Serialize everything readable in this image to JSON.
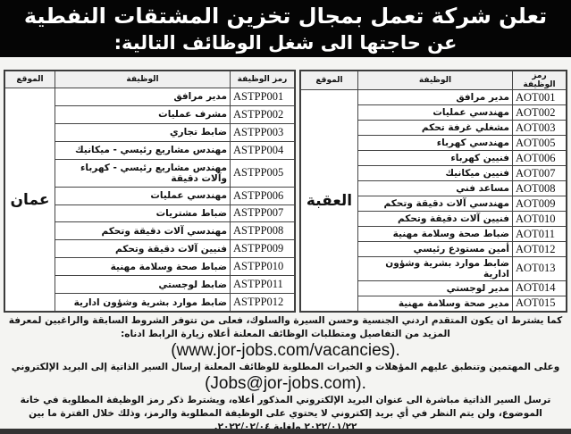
{
  "header": {
    "line1": "تعلن شركة تعمل بمجال تخزين المشتقات النفطية",
    "line2": "عن حاجتها الى شغل الوظائف التالية:"
  },
  "columns": {
    "code": "رمز الوظيفة",
    "title": "الوظيفة",
    "location": "الموقع"
  },
  "aqaba": {
    "location": "العقبة",
    "rows": [
      {
        "code": "AOT001",
        "title": "مدير مرافق"
      },
      {
        "code": "AOT002",
        "title": "مهندسي عمليات"
      },
      {
        "code": "AOT003",
        "title": "مشغلي غرفة تحكم"
      },
      {
        "code": "AOT005",
        "title": "مهندسي كهرباء"
      },
      {
        "code": "AOT006",
        "title": "فنيين كهرباء"
      },
      {
        "code": "AOT007",
        "title": "فنيين ميكانيك"
      },
      {
        "code": "AOT008",
        "title": "مساعد فني"
      },
      {
        "code": "AOT009",
        "title": "مهندسي آلات دقيقة وتحكم"
      },
      {
        "code": "AOT010",
        "title": "فنيين آلات دقيقة وتحكم"
      },
      {
        "code": "AOT011",
        "title": "ضباط صحة وسلامة مهنية"
      },
      {
        "code": "AOT012",
        "title": "أمين مستودع رئيسي"
      },
      {
        "code": "AOT013",
        "title": "ضابط موارد بشرية وشؤون ادارية"
      },
      {
        "code": "AOT014",
        "title": "مدير لوجستي"
      },
      {
        "code": "AOT015",
        "title": "مدير صحة وسلامة مهنية"
      }
    ]
  },
  "amman": {
    "location": "عمان",
    "rows": [
      {
        "code": "ASTPP001",
        "title": "مدير مرافق"
      },
      {
        "code": "ASTPP002",
        "title": "مشرف عمليات"
      },
      {
        "code": "ASTPP003",
        "title": "ضابط تجاري"
      },
      {
        "code": "ASTPP004",
        "title": "مهندس مشاريع رئيسي - ميكانيك"
      },
      {
        "code": "ASTPP005",
        "title": "مهندس مشاريع رئيسي - كهرباء وآلات دقيقة"
      },
      {
        "code": "ASTPP006",
        "title": "مهندسي عمليات"
      },
      {
        "code": "ASTPP007",
        "title": "ضباط مشتريات"
      },
      {
        "code": "ASTPP008",
        "title": "مهندسي آلات دقيقة وتحكم"
      },
      {
        "code": "ASTPP009",
        "title": "فنيين آلات دقيقة وتحكم"
      },
      {
        "code": "ASTPP010",
        "title": "ضباط صحة وسلامة مهنية"
      },
      {
        "code": "ASTPP011",
        "title": "ضابط لوجستي"
      },
      {
        "code": "ASTPP012",
        "title": "ضابط موارد بشرية وشؤون ادارية"
      }
    ]
  },
  "body": {
    "p1": "كما يشترط ان يكون المتقدم اردني الجنسية وحسن السيرة والسلوك، فعلى من تتوفر الشروط السابقة والراغبين لمعرفة المزيد من التفاصيل ومتطلبات الوظائف المعلنة أعلاه زيارة الرابط ادناه:",
    "url": "(www.jor-jobs.com/vacancies).",
    "p2": "وعلى المهتمين وتنطبق عليهم المؤهلات و الخبرات المطلوبة للوظائف المعلنة إرسال السير الذاتية إلى البريد الإلكتروني",
    "email": "(Jobs@jor-jobs.com).",
    "p3": "ترسل السير الذاتية مباشرة الى عنوان البريد الإلكتروني المذكور أعلاه، ويشترط ذكر رمز الوظيفة المطلوبة في خانة الموضوع، ولن يتم النظر في أي بريد إلكتروني لا يحتوي على الوظيفة المطلوبة والرمز، وذلك خلال الفترة ما بين ٢٠٢٢/٠١/٢٢ ولغاية ٢٠٢٢/٠٢/٠٤."
  }
}
